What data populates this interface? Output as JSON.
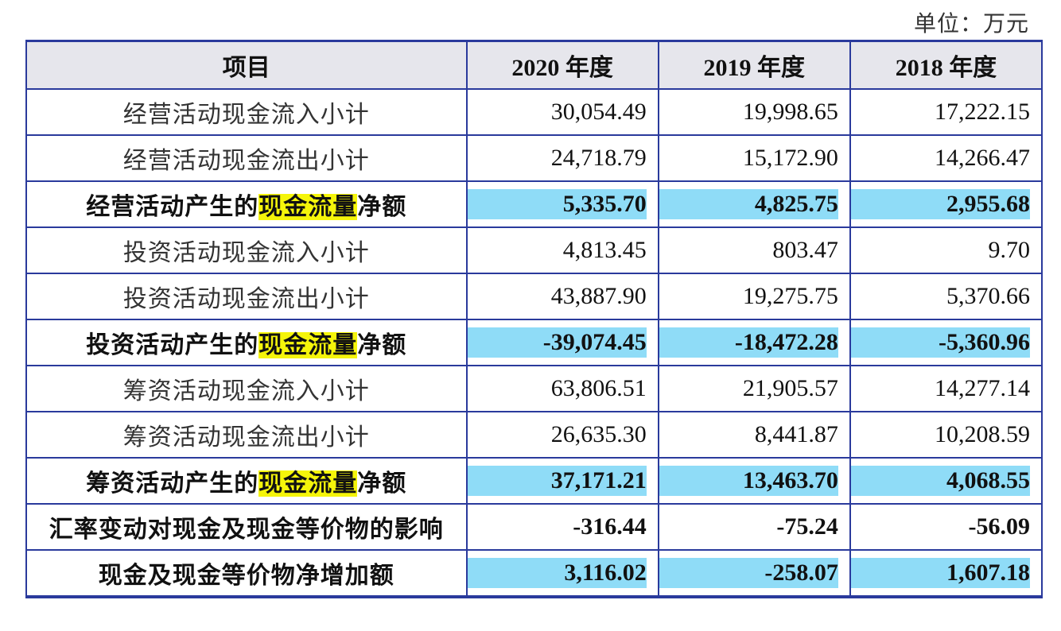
{
  "unit_label": "单位：万元",
  "headers": [
    "项目",
    "2020 年度",
    "2019 年度",
    "2018 年度"
  ],
  "colors": {
    "border": "#2a3a9c",
    "header_bg": "#e6e6ec",
    "value_highlight": "#8fdcf7",
    "text_highlight": "#f5f50a"
  },
  "rows": [
    {
      "label": "经营活动现金流入小计",
      "values": [
        "30,054.49",
        "19,998.65",
        "17,222.15"
      ],
      "bold": false,
      "highlight": false
    },
    {
      "label": "经营活动现金流出小计",
      "values": [
        "24,718.79",
        "15,172.90",
        "14,266.47"
      ],
      "bold": false,
      "highlight": false
    },
    {
      "label_parts": [
        "经营活动产生的",
        "现金流量",
        "净额"
      ],
      "values": [
        "5,335.70",
        "4,825.75",
        "2,955.68"
      ],
      "bold": true,
      "highlight": true
    },
    {
      "label": "投资活动现金流入小计",
      "values": [
        "4,813.45",
        "803.47",
        "9.70"
      ],
      "bold": false,
      "highlight": false
    },
    {
      "label": "投资活动现金流出小计",
      "values": [
        "43,887.90",
        "19,275.75",
        "5,370.66"
      ],
      "bold": false,
      "highlight": false
    },
    {
      "label_parts": [
        "投资活动产生的",
        "现金流量",
        "净额"
      ],
      "values": [
        "-39,074.45",
        "-18,472.28",
        "-5,360.96"
      ],
      "bold": true,
      "highlight": true
    },
    {
      "label": "筹资活动现金流入小计",
      "values": [
        "63,806.51",
        "21,905.57",
        "14,277.14"
      ],
      "bold": false,
      "highlight": false
    },
    {
      "label": "筹资活动现金流出小计",
      "values": [
        "26,635.30",
        "8,441.87",
        "10,208.59"
      ],
      "bold": false,
      "highlight": false
    },
    {
      "label_parts": [
        "筹资活动产生的",
        "现金流量",
        "净额"
      ],
      "values": [
        "37,171.21",
        "13,463.70",
        "4,068.55"
      ],
      "bold": true,
      "highlight": true
    },
    {
      "label": "汇率变动对现金及现金等价物的影响",
      "values": [
        "-316.44",
        "-75.24",
        "-56.09"
      ],
      "bold": true,
      "highlight": false
    },
    {
      "label": "现金及现金等价物净增加额",
      "values": [
        "3,116.02",
        "-258.07",
        "1,607.18"
      ],
      "bold": true,
      "highlight": true
    }
  ]
}
